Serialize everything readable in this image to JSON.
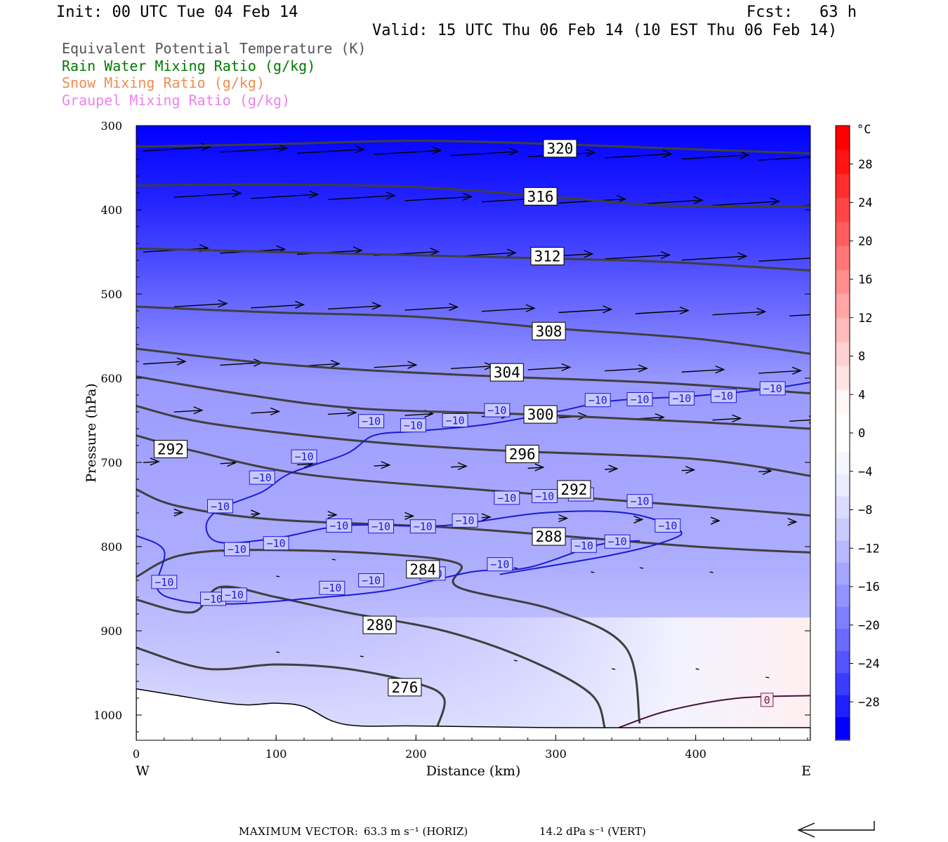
{
  "header": {
    "init": "Init: 00 UTC Tue 04 Feb 14",
    "fcst_label": "Fcst:",
    "fcst_value": "63 h",
    "valid": "Valid: 15 UTC Thu 06 Feb 14 (10 EST Thu 06 Feb 14)"
  },
  "legend": [
    {
      "label": "Equivalent Potential Temperature (K)",
      "color": "#555555"
    },
    {
      "label": "Rain Water Mixing Ratio (g/kg)",
      "color": "#007a00"
    },
    {
      "label": "Snow Mixing Ratio (g/kg)",
      "color": "#f08c50"
    },
    {
      "label": "Graupel Mixing Ratio (g/kg)",
      "color": "#ee82ee"
    }
  ],
  "footer": {
    "label": "MAXIMUM VECTOR:",
    "horiz": "63.3 m s⁻¹ (HORIZ)",
    "vert": "14.2 dPa s⁻¹ (VERT)"
  },
  "chart_data": {
    "type": "heatmap",
    "xlabel": "Distance (km)",
    "ylabel": "Pressure (hPa)",
    "xlim": [
      0,
      482
    ],
    "ylim": [
      1030,
      300
    ],
    "x_ticks": [
      0,
      100,
      200,
      300,
      400
    ],
    "y_ticks": [
      300,
      400,
      500,
      600,
      700,
      800,
      900,
      1000
    ],
    "x_end_labels": {
      "left": "W",
      "right": "E"
    },
    "colorbar": {
      "unit": "°C",
      "ticks": [
        28,
        24,
        20,
        16,
        12,
        8,
        4,
        0,
        -4,
        -8,
        -12,
        -16,
        -20,
        -24,
        -28
      ],
      "range": [
        -32,
        32
      ],
      "colors_cold": [
        "#0000ff",
        "#2020ff",
        "#3c3cff",
        "#5555ff",
        "#6a6aff",
        "#7f7fff",
        "#9393ff",
        "#a6a6ff",
        "#b8b8ff",
        "#cacaff",
        "#dbdbff",
        "#ececff",
        "#f6f6ff"
      ],
      "colors_warm": [
        "#fff6f6",
        "#ffe4e4",
        "#ffd0d0",
        "#ffbbbb",
        "#ffa5a5",
        "#ff8f8f",
        "#ff7777",
        "#ff5f5f",
        "#ff4646",
        "#ff2d2d",
        "#ff1414",
        "#ff0000"
      ]
    },
    "theta_e_contours": [
      {
        "value": 320,
        "points": [
          [
            0,
            325
          ],
          [
            100,
            322
          ],
          [
            200,
            318
          ],
          [
            300,
            322
          ],
          [
            380,
            327
          ],
          [
            482,
            333
          ]
        ],
        "label_at": [
          303,
          327
        ]
      },
      {
        "value": 316,
        "points": [
          [
            0,
            371
          ],
          [
            100,
            370
          ],
          [
            200,
            373
          ],
          [
            300,
            385
          ],
          [
            380,
            395
          ],
          [
            482,
            396
          ]
        ],
        "label_at": [
          289,
          384
        ]
      },
      {
        "value": 312,
        "points": [
          [
            0,
            446
          ],
          [
            100,
            450
          ],
          [
            200,
            454
          ],
          [
            300,
            458
          ],
          [
            380,
            462
          ],
          [
            482,
            472
          ]
        ],
        "label_at": [
          294,
          455
        ]
      },
      {
        "value": 308,
        "points": [
          [
            0,
            515
          ],
          [
            100,
            522
          ],
          [
            200,
            527
          ],
          [
            300,
            541
          ],
          [
            400,
            553
          ],
          [
            482,
            571
          ]
        ],
        "label_at": [
          295,
          544
        ]
      },
      {
        "value": 304,
        "points": [
          [
            0,
            565
          ],
          [
            80,
            580
          ],
          [
            160,
            590
          ],
          [
            260,
            598
          ],
          [
            380,
            606
          ],
          [
            482,
            618
          ]
        ],
        "label_at": [
          265,
          593
        ]
      },
      {
        "value": 300,
        "points": [
          [
            0,
            598
          ],
          [
            80,
            620
          ],
          [
            160,
            636
          ],
          [
            280,
            643
          ],
          [
            400,
            652
          ],
          [
            482,
            660
          ]
        ],
        "label_at": [
          289,
          643
        ]
      },
      {
        "value": 296,
        "points": [
          [
            0,
            633
          ],
          [
            50,
            653
          ],
          [
            150,
            673
          ],
          [
            250,
            685
          ],
          [
            400,
            696
          ],
          [
            482,
            716
          ]
        ],
        "label_at": [
          276,
          690
        ]
      },
      {
        "value": 292,
        "points": [
          [
            0,
            668
          ],
          [
            40,
            686
          ],
          [
            120,
            714
          ],
          [
            250,
            733
          ],
          [
            400,
            752
          ],
          [
            482,
            763
          ]
        ],
        "label_at": [
          313,
          732
        ]
      },
      {
        "value": 288,
        "points": [
          [
            0,
            732
          ],
          [
            30,
            752
          ],
          [
            100,
            768
          ],
          [
            230,
            778
          ],
          [
            400,
            800
          ],
          [
            482,
            807
          ]
        ],
        "label_at": [
          295,
          788
        ]
      },
      {
        "value": 284,
        "points": [
          [
            0,
            836
          ],
          [
            30,
            811
          ],
          [
            80,
            804
          ],
          [
            170,
            808
          ],
          [
            230,
            820
          ],
          [
            230,
            848
          ],
          [
            300,
            876
          ],
          [
            350,
            920
          ],
          [
            360,
            1010
          ]
        ],
        "label_at": [
          205,
          827
        ]
      },
      {
        "value": 280,
        "points": [
          [
            0,
            863
          ],
          [
            40,
            878
          ],
          [
            60,
            848
          ],
          [
            100,
            860
          ],
          [
            150,
            878
          ],
          [
            220,
            900
          ],
          [
            280,
            934
          ],
          [
            325,
            975
          ],
          [
            335,
            1015
          ]
        ],
        "label_at": [
          174,
          893
        ]
      },
      {
        "value": 276,
        "points": [
          [
            0,
            920
          ],
          [
            50,
            945
          ],
          [
            100,
            940
          ],
          [
            150,
            945
          ],
          [
            200,
            962
          ],
          [
            220,
            980
          ],
          [
            215,
            1015
          ]
        ],
        "label_at": [
          192,
          967
        ]
      }
    ],
    "isotherm_minus10": [
      [
        [
          0,
          787
        ],
        [
          20,
          805
        ],
        [
          15,
          850
        ],
        [
          35,
          865
        ],
        [
          70,
          868
        ],
        [
          120,
          862
        ],
        [
          180,
          852
        ],
        [
          240,
          830
        ],
        [
          280,
          825
        ],
        [
          330,
          798
        ],
        [
          360,
          793
        ]
      ],
      [
        [
          260,
          833
        ],
        [
          340,
          810
        ],
        [
          380,
          793
        ],
        [
          388,
          780
        ],
        [
          350,
          760
        ],
        [
          290,
          760
        ],
        [
          220,
          775
        ],
        [
          150,
          775
        ],
        [
          100,
          790
        ],
        [
          60,
          795
        ],
        [
          50,
          776
        ],
        [
          60,
          755
        ],
        [
          90,
          735
        ],
        [
          110,
          713
        ],
        [
          150,
          690
        ],
        [
          170,
          668
        ],
        [
          200,
          663
        ],
        [
          250,
          655
        ],
        [
          300,
          640
        ],
        [
          340,
          627
        ],
        [
          400,
          621
        ],
        [
          450,
          613
        ],
        [
          482,
          605
        ]
      ]
    ],
    "isotherm_minus10_labels": [
      [
        20,
        842
      ],
      [
        55,
        862
      ],
      [
        70,
        857
      ],
      [
        140,
        849
      ],
      [
        168,
        840
      ],
      [
        212,
        832
      ],
      [
        260,
        821
      ],
      [
        320,
        799
      ],
      [
        344,
        794
      ],
      [
        380,
        775
      ],
      [
        360,
        746
      ],
      [
        318,
        738
      ],
      [
        292,
        740
      ],
      [
        265,
        742
      ],
      [
        235,
        769
      ],
      [
        205,
        776
      ],
      [
        175,
        776
      ],
      [
        145,
        775
      ],
      [
        100,
        796
      ],
      [
        72,
        803
      ],
      [
        60,
        752
      ],
      [
        90,
        718
      ],
      [
        120,
        693
      ],
      [
        168,
        651
      ],
      [
        198,
        656
      ],
      [
        228,
        650
      ],
      [
        258,
        638
      ],
      [
        330,
        626
      ],
      [
        360,
        625
      ],
      [
        390,
        624
      ],
      [
        420,
        621
      ],
      [
        455,
        612
      ]
    ],
    "isotherm_zero": {
      "points": [
        [
          345,
          1015
        ],
        [
          380,
          995
        ],
        [
          430,
          980
        ],
        [
          482,
          977
        ]
      ],
      "label_at": [
        451,
        982
      ],
      "label": "0"
    },
    "terrain": [
      [
        0,
        969
      ],
      [
        30,
        977
      ],
      [
        60,
        985
      ],
      [
        80,
        988
      ],
      [
        100,
        986
      ],
      [
        120,
        990
      ],
      [
        140,
        1007
      ],
      [
        160,
        1013
      ],
      [
        200,
        1013
      ],
      [
        300,
        1015
      ],
      [
        400,
        1015
      ],
      [
        482,
        1015
      ]
    ]
  }
}
